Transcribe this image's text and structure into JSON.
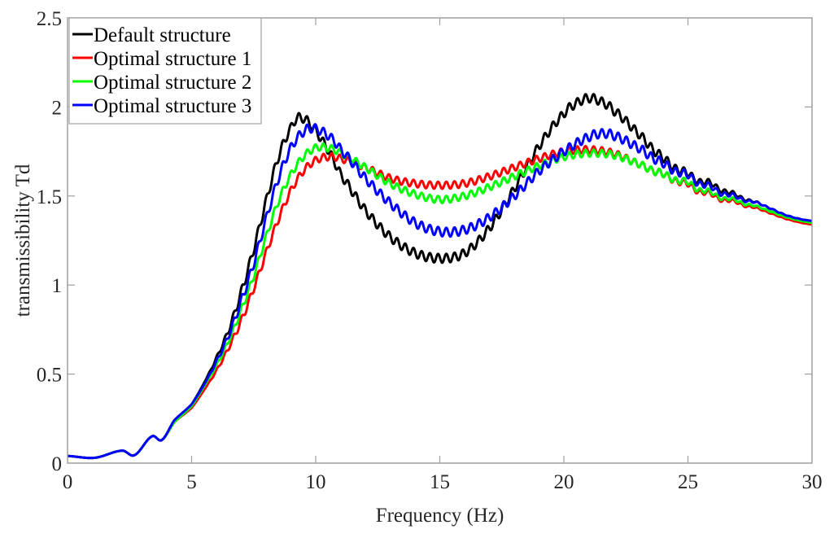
{
  "chart_data": {
    "type": "line",
    "title": "",
    "xlabel": "Frequency (Hz)",
    "ylabel": "transmissibility Td",
    "xlim": [
      0,
      30
    ],
    "ylim": [
      0,
      2.5
    ],
    "xticks": [
      0,
      5,
      10,
      15,
      20,
      25,
      30
    ],
    "xtick_labels": [
      "0",
      "5",
      "10",
      "15",
      "20",
      "25",
      "30"
    ],
    "yticks": [
      0,
      0.5,
      1,
      1.5,
      2,
      2.5
    ],
    "ytick_labels": [
      "0",
      "0.5",
      "1",
      "1.5",
      "2",
      "2.5"
    ],
    "grid": false,
    "box": true,
    "legend_position": "top-left",
    "ripple": {
      "period_hz": 0.33,
      "note": "high-frequency oscillation visible on all curves between ~6 and ~28 Hz"
    },
    "series": [
      {
        "name": "Default structure",
        "color": "#000000",
        "ripple_amplitude": 0.025,
        "x": [
          0,
          1.1,
          2.2,
          2.7,
          3.4,
          3.8,
          4.3,
          5,
          5.5,
          6,
          6.5,
          7,
          7.5,
          8,
          8.5,
          9,
          9.3,
          9.8,
          10.5,
          11,
          12,
          13,
          14,
          15,
          16,
          17,
          18,
          19,
          20,
          20.5,
          21,
          21.5,
          22,
          23,
          24,
          25,
          26,
          27,
          28,
          29,
          30
        ],
        "y": [
          0.04,
          0.03,
          0.07,
          0.045,
          0.15,
          0.13,
          0.24,
          0.33,
          0.45,
          0.59,
          0.75,
          0.96,
          1.2,
          1.47,
          1.72,
          1.88,
          1.94,
          1.9,
          1.76,
          1.62,
          1.42,
          1.27,
          1.18,
          1.15,
          1.18,
          1.32,
          1.54,
          1.78,
          1.96,
          2.02,
          2.05,
          2.03,
          1.98,
          1.85,
          1.71,
          1.62,
          1.56,
          1.5,
          1.45,
          1.39,
          1.36
        ]
      },
      {
        "name": "Optimal structure 1",
        "color": "#ff0000",
        "ripple_amplitude": 0.02,
        "x": [
          0,
          1.1,
          2.2,
          2.7,
          3.4,
          3.8,
          4.3,
          5,
          5.5,
          6,
          6.5,
          7,
          7.5,
          8,
          8.5,
          9,
          9.5,
          10,
          10.5,
          11,
          12,
          13,
          14,
          15,
          16,
          17,
          18,
          19,
          20,
          21,
          22,
          23,
          24,
          25,
          26,
          27,
          28,
          29,
          30
        ],
        "y": [
          0.04,
          0.03,
          0.07,
          0.045,
          0.15,
          0.13,
          0.23,
          0.31,
          0.41,
          0.52,
          0.65,
          0.8,
          0.98,
          1.18,
          1.37,
          1.53,
          1.64,
          1.7,
          1.72,
          1.71,
          1.66,
          1.6,
          1.57,
          1.56,
          1.57,
          1.61,
          1.66,
          1.71,
          1.75,
          1.76,
          1.74,
          1.68,
          1.62,
          1.56,
          1.5,
          1.46,
          1.42,
          1.37,
          1.34
        ]
      },
      {
        "name": "Optimal structure 2",
        "color": "#00ff00",
        "ripple_amplitude": 0.02,
        "x": [
          0,
          1.1,
          2.2,
          2.7,
          3.4,
          3.8,
          4.3,
          5,
          5.5,
          6,
          6.5,
          7,
          7.5,
          8,
          8.5,
          9,
          9.5,
          10,
          10.5,
          11,
          12,
          13,
          14,
          15,
          16,
          17,
          18,
          19,
          20,
          21,
          22,
          23,
          24,
          25,
          26,
          27,
          28,
          29,
          30
        ],
        "y": [
          0.04,
          0.03,
          0.07,
          0.045,
          0.15,
          0.13,
          0.23,
          0.32,
          0.43,
          0.55,
          0.69,
          0.86,
          1.05,
          1.27,
          1.47,
          1.62,
          1.72,
          1.77,
          1.77,
          1.74,
          1.66,
          1.57,
          1.51,
          1.48,
          1.5,
          1.55,
          1.61,
          1.67,
          1.72,
          1.74,
          1.73,
          1.68,
          1.62,
          1.57,
          1.51,
          1.47,
          1.43,
          1.38,
          1.35
        ]
      },
      {
        "name": "Optimal structure 3",
        "color": "#0000ff",
        "ripple_amplitude": 0.025,
        "x": [
          0,
          1.1,
          2.2,
          2.7,
          3.4,
          3.8,
          4.3,
          5,
          5.5,
          6,
          6.5,
          7,
          7.5,
          8,
          8.5,
          9,
          9.5,
          9.9,
          10.5,
          11,
          12,
          13,
          14,
          15,
          16,
          17,
          18,
          19,
          20,
          21,
          21.5,
          22,
          23,
          24,
          25,
          26,
          27,
          28,
          29,
          30
        ],
        "y": [
          0.04,
          0.03,
          0.07,
          0.045,
          0.15,
          0.13,
          0.24,
          0.33,
          0.44,
          0.57,
          0.72,
          0.91,
          1.12,
          1.37,
          1.6,
          1.77,
          1.86,
          1.88,
          1.84,
          1.76,
          1.6,
          1.46,
          1.35,
          1.3,
          1.31,
          1.38,
          1.5,
          1.64,
          1.75,
          1.83,
          1.85,
          1.84,
          1.77,
          1.68,
          1.61,
          1.54,
          1.49,
          1.45,
          1.39,
          1.36
        ]
      }
    ]
  }
}
